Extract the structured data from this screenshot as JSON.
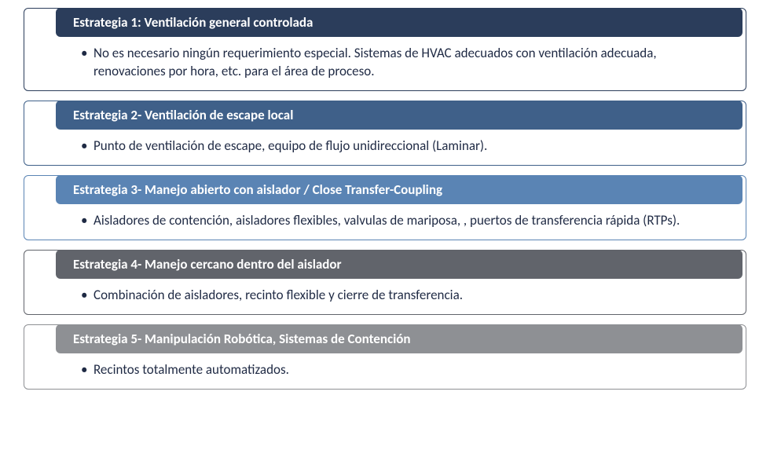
{
  "type": "infographic-list",
  "background_color": "#ffffff",
  "text_color": "#1f2a44",
  "font_family": "Segoe UI",
  "header_fontsize": 17,
  "body_fontsize": 17,
  "blocks": [
    {
      "border_color": "#2b3d5b",
      "header_bg": "#2b3d5b",
      "header_text": "Estrategia 1: Ventilación general controlada",
      "body_text": "No es necesario ningún requerimiento especial. Sistemas de HVAC adecuados con ventilación adecuada, renovaciones por hora, etc. para el área de proceso."
    },
    {
      "border_color": "#3f6089",
      "header_bg": "#3f6089",
      "header_text": "Estrategia 2- Ventilación de escape local",
      "body_text": "Punto de ventilación de escape, equipo de flujo unidireccional (Laminar)."
    },
    {
      "border_color": "#5a84b4",
      "header_bg": "#5a84b4",
      "header_text": "Estrategia 3- Manejo abierto con aislador / Close Transfer-Coupling",
      "body_text": "Aisladores de contención, aisladores flexibles, valvulas de mariposa, , puertos de transferencia rápida (RTPs)."
    },
    {
      "border_color": "#61646b",
      "header_bg": "#61646b",
      "header_text": "Estrategia 4- Manejo cercano dentro del aislador",
      "body_text": "Combinación de aisladores, recinto flexible y cierre de transferencia."
    },
    {
      "border_color": "#8e9094",
      "header_bg": "#8e9094",
      "header_text": "Estrategia 5- Manipulación Robótica, Sistemas de Contención",
      "body_text": "Recintos totalmente automatizados."
    }
  ]
}
